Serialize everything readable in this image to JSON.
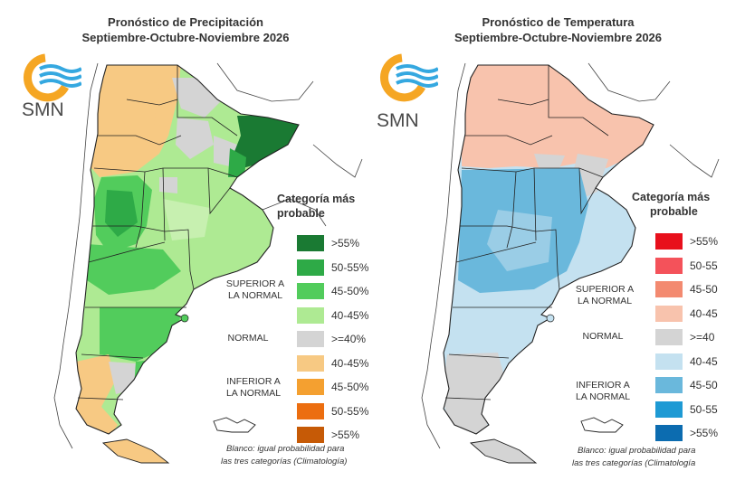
{
  "precipitation": {
    "title_line1": "Pronóstico de Precipitación",
    "title_line2": "Septiembre-Octubre-Noviembre 2026",
    "logo_text": "SMN",
    "legend_title_line1": "Categoría más",
    "legend_title_line2": "probable",
    "group_superior_line1": "SUPERIOR A",
    "group_superior_line2": "LA NORMAL",
    "group_normal": "NORMAL",
    "group_inferior_line1": "INFERIOR A",
    "group_inferior_line2": "LA NORMAL",
    "legend": [
      {
        "label": ">55%",
        "color": "#1a7a33"
      },
      {
        "label": "50-55%",
        "color": "#2eaa47"
      },
      {
        "label": "45-50%",
        "color": "#52cc5c"
      },
      {
        "label": "40-45%",
        "color": "#aeea93"
      },
      {
        "label": ">=40%",
        "color": "#d4d4d4"
      },
      {
        "label": "40-45%",
        "color": "#f7c983"
      },
      {
        "label": "45-50%",
        "color": "#f4a030"
      },
      {
        "label": "50-55%",
        "color": "#ec6e10"
      },
      {
        "label": ">55%",
        "color": "#c65a06"
      }
    ],
    "footnote_line1": "Blanco: igual probabilidad para",
    "footnote_line2": "las tres categorías (Climatología)"
  },
  "temperature": {
    "title_line1": "Pronóstico de Temperatura",
    "title_line2": "Septiembre-Octubre-Noviembre 2026",
    "logo_text": "SMN",
    "legend_title_line1": "Categoría más",
    "legend_title_line2": "probable",
    "group_superior_line1": "SUPERIOR A",
    "group_superior_line2": "LA NORMAL",
    "group_normal": "NORMAL",
    "group_inferior_line1": "INFERIOR A",
    "group_inferior_line2": "LA NORMAL",
    "legend": [
      {
        "label": ">55%",
        "color": "#e8101c"
      },
      {
        "label": "50-55",
        "color": "#f4525a"
      },
      {
        "label": "45-50",
        "color": "#f38a70"
      },
      {
        "label": "40-45",
        "color": "#f8c3ad"
      },
      {
        "label": ">=40",
        "color": "#d4d4d4"
      },
      {
        "label": "40-45",
        "color": "#c4e1f0"
      },
      {
        "label": "45-50",
        "color": "#6ab8dc"
      },
      {
        "label": "50-55",
        "color": "#1e9ad4"
      },
      {
        "label": ">55%",
        "color": "#0c6cb0"
      }
    ],
    "footnote_line1": "Blanco: igual probabilidad para",
    "footnote_line2": "las tres categorías (Climatología"
  },
  "colors": {
    "logo_orange": "#f5a623",
    "logo_blue": "#35a8e0",
    "border": "#222222",
    "neighbor_border": "#444444"
  }
}
